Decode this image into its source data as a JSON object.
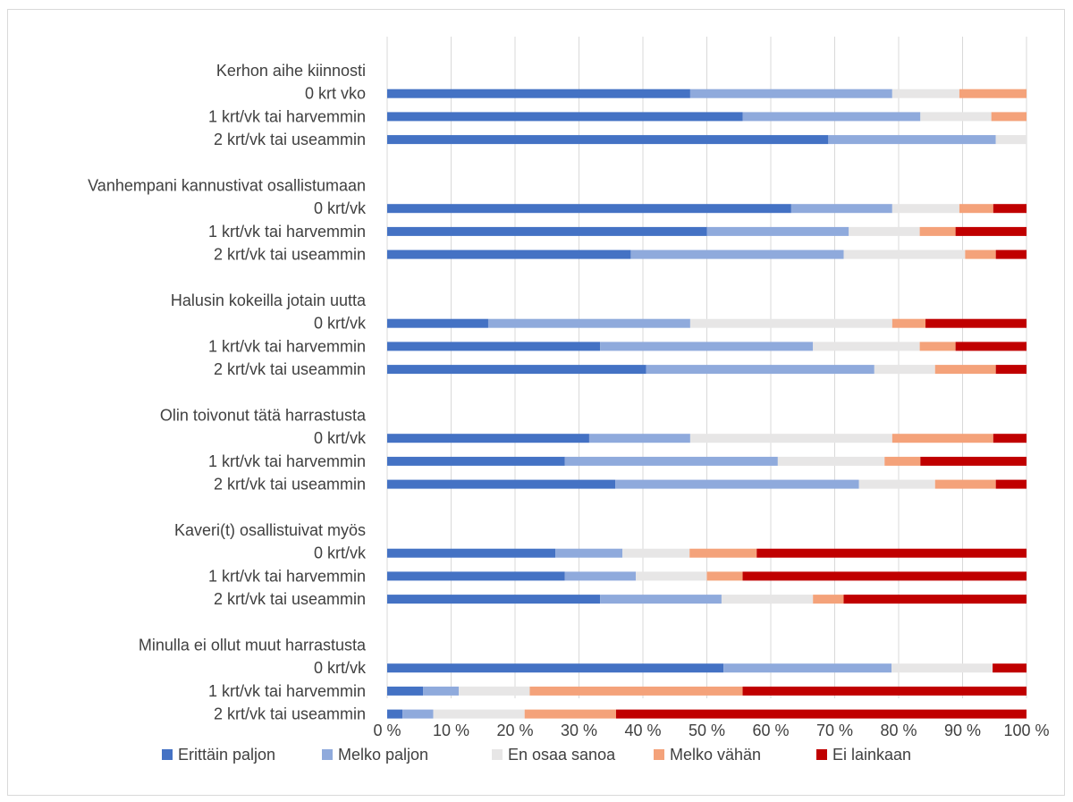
{
  "chart_data": {
    "type": "bar",
    "orientation": "horizontal",
    "stacked": "percent",
    "grid": true,
    "legend_position": "bottom",
    "xlim": [
      0,
      100
    ],
    "x_tick_labels": [
      "0 %",
      "10 %",
      "20 %",
      "30 %",
      "40 %",
      "50 %",
      "60 %",
      "70 %",
      "80 %",
      "90 %",
      "100 %"
    ],
    "series": [
      {
        "name": "Erittäin paljon",
        "color": "#4472c4"
      },
      {
        "name": "Melko paljon",
        "color": "#8faadc"
      },
      {
        "name": "En osaa sanoa",
        "color": "#e7e6e6"
      },
      {
        "name": "Melko vähän",
        "color": "#f4a27a"
      },
      {
        "name": "Ei lainkaan",
        "color": "#c00000"
      }
    ],
    "groups": [
      {
        "title": "Kerhon aihe kiinnosti",
        "rows": [
          {
            "label": "0 krt vko",
            "values": [
              47.4,
              31.6,
              10.5,
              10.5,
              0
            ]
          },
          {
            "label": "1 krt/vk tai harvemmin",
            "values": [
              55.6,
              27.8,
              11.1,
              5.5,
              0
            ]
          },
          {
            "label": "2 krt/vk tai useammin",
            "values": [
              69.0,
              26.2,
              4.8,
              0,
              0
            ]
          }
        ]
      },
      {
        "title": "Vanhempani kannustivat osallistumaan",
        "rows": [
          {
            "label": "0 krt/vk",
            "values": [
              63.2,
              15.8,
              10.5,
              5.3,
              5.2
            ]
          },
          {
            "label": "1 krt/vk tai harvemmin",
            "values": [
              50.0,
              22.2,
              11.1,
              5.6,
              11.1
            ]
          },
          {
            "label": "2 krt/vk tai useammin",
            "values": [
              38.1,
              33.3,
              19.0,
              4.8,
              4.8
            ]
          }
        ]
      },
      {
        "title": "Halusin kokeilla jotain uutta",
        "rows": [
          {
            "label": "0 krt/vk",
            "values": [
              15.8,
              31.6,
              31.6,
              5.2,
              15.8
            ]
          },
          {
            "label": "1 krt/vk tai harvemmin",
            "values": [
              33.3,
              33.3,
              16.7,
              5.6,
              11.1
            ]
          },
          {
            "label": "2 krt/vk tai useammin",
            "values": [
              40.5,
              35.7,
              9.5,
              9.5,
              4.8
            ]
          }
        ]
      },
      {
        "title": "Olin toivonut tätä harrastusta",
        "rows": [
          {
            "label": "0 krt/vk",
            "values": [
              31.6,
              15.8,
              31.6,
              15.8,
              5.2
            ]
          },
          {
            "label": "1 krt/vk tai harvemmin",
            "values": [
              27.8,
              33.3,
              16.7,
              5.6,
              16.6
            ]
          },
          {
            "label": "2 krt/vk tai useammin",
            "values": [
              35.7,
              38.1,
              11.9,
              9.5,
              4.8
            ]
          }
        ]
      },
      {
        "title": "Kaveri(t) osallistuivat myös",
        "rows": [
          {
            "label": "0 krt/vk",
            "values": [
              26.3,
              10.5,
              10.5,
              10.5,
              42.2
            ]
          },
          {
            "label": "1 krt/vk tai harvemmin",
            "values": [
              27.8,
              11.1,
              11.1,
              5.6,
              44.4
            ]
          },
          {
            "label": "2 krt/vk tai useammin",
            "values": [
              33.3,
              19.0,
              14.3,
              4.8,
              28.6
            ]
          }
        ]
      },
      {
        "title": "Minulla ei ollut muut harrastusta",
        "rows": [
          {
            "label": "0 krt/vk",
            "values": [
              52.6,
              26.3,
              15.8,
              0,
              5.3
            ]
          },
          {
            "label": "1 krt/vk tai harvemmin",
            "values": [
              5.6,
              5.6,
              11.1,
              33.3,
              44.4
            ]
          },
          {
            "label": "2 krt/vk tai useammin",
            "values": [
              2.4,
              4.8,
              14.3,
              14.3,
              64.2
            ]
          }
        ]
      }
    ]
  }
}
